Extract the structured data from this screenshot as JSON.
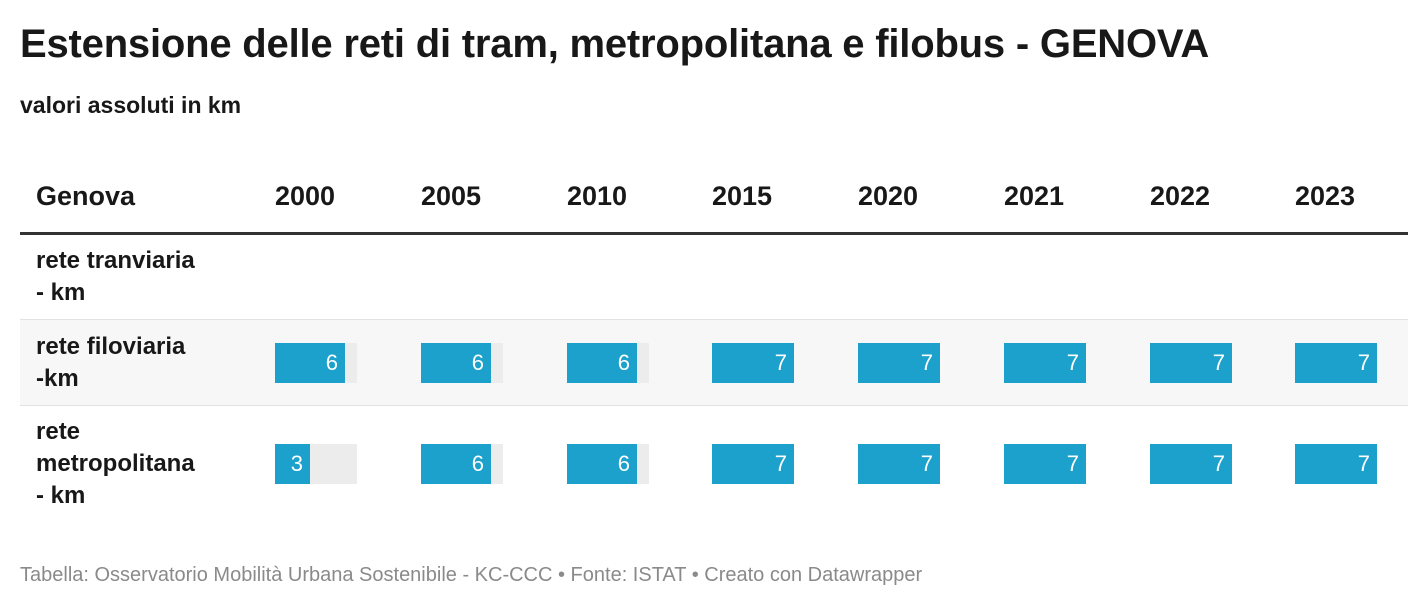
{
  "title": "Estensione delle reti di tram, metropolitana e filobus - GENOVA",
  "subtitle": "valori assoluti in km",
  "source": "Tabella: Osservatorio Mobilità Urbana Sostenibile - KC-CCC • Fonte: ISTAT • Creato con Datawrapper",
  "colors": {
    "bar": "#1ba1cb",
    "track": "#ececec"
  },
  "chart_data": {
    "type": "table",
    "row_header": "Genova",
    "columns": [
      "2000",
      "2005",
      "2010",
      "2015",
      "2020",
      "2021",
      "2022",
      "2023"
    ],
    "bar_max": 7,
    "rows": [
      {
        "label": "rete tranviaria - km",
        "label_lines": [
          "rete tranviaria",
          "- km"
        ],
        "values": [
          null,
          null,
          null,
          null,
          null,
          null,
          null,
          null
        ]
      },
      {
        "label": "rete filoviaria -km",
        "label_lines": [
          "rete filoviaria",
          "-km"
        ],
        "values": [
          6,
          6,
          6,
          7,
          7,
          7,
          7,
          7
        ]
      },
      {
        "label": "rete metropolitana - km",
        "label_lines": [
          "rete",
          "metropolitana",
          "- km"
        ],
        "values": [
          3,
          6,
          6,
          7,
          7,
          7,
          7,
          7
        ]
      }
    ]
  }
}
